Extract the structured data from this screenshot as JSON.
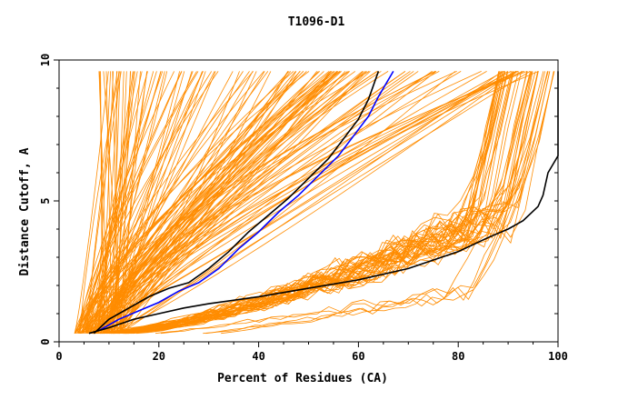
{
  "chart_data": {
    "type": "line",
    "title": "T1096-D1",
    "xlabel": "Percent of Residues (CA)",
    "ylabel": "Distance Cutoff, A",
    "xlim": [
      0,
      100
    ],
    "ylim": [
      0,
      10
    ],
    "x_ticks": [
      0,
      20,
      40,
      60,
      80,
      100
    ],
    "x_tick_labels": [
      "0",
      "20",
      "40",
      "60",
      "80",
      "100"
    ],
    "y_ticks": [
      0,
      5,
      10
    ],
    "y_tick_labels": [
      "0",
      "5",
      "10"
    ],
    "grid": false,
    "legend": "none",
    "colors": {
      "models": "#ff8c00",
      "highlight_black": "#000000",
      "highlight_blue": "#0000ff"
    },
    "background_models": {
      "count": 190,
      "x_range": [
        3,
        100
      ],
      "y_range": [
        0.3,
        9.6
      ]
    },
    "series": [
      {
        "color": "#000000",
        "x": [
          7,
          10,
          14,
          18,
          22,
          26,
          30,
          34,
          38,
          42,
          46,
          50,
          54,
          57,
          60,
          62,
          64
        ],
        "y": [
          0.3,
          0.8,
          1.2,
          1.6,
          1.9,
          2.1,
          2.6,
          3.2,
          3.9,
          4.5,
          5.1,
          5.8,
          6.5,
          7.2,
          7.9,
          8.6,
          9.6
        ]
      },
      {
        "color": "#0000ff",
        "x": [
          8,
          12,
          16,
          20,
          24,
          28,
          32,
          36,
          40,
          44,
          48,
          52,
          56,
          59,
          62,
          64,
          67
        ],
        "y": [
          0.4,
          0.8,
          1.1,
          1.4,
          1.8,
          2.1,
          2.6,
          3.3,
          3.9,
          4.6,
          5.2,
          5.9,
          6.6,
          7.3,
          8.0,
          8.7,
          9.6
        ]
      },
      {
        "color": "#000000",
        "x": [
          6,
          10,
          15,
          20,
          25,
          30,
          40,
          50,
          60,
          70,
          80,
          86,
          90,
          93,
          96,
          97,
          98,
          100,
          100
        ],
        "y": [
          0.3,
          0.5,
          0.8,
          1.0,
          1.2,
          1.35,
          1.6,
          1.9,
          2.2,
          2.6,
          3.2,
          3.7,
          4.0,
          4.3,
          4.8,
          5.2,
          6.0,
          6.6,
          9.6
        ]
      }
    ]
  }
}
